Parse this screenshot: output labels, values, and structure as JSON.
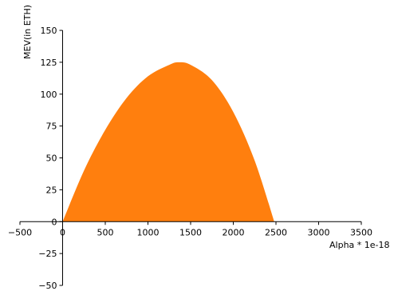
{
  "chart_data": {
    "type": "area",
    "title": "",
    "xlabel": "Alpha * 1e-18",
    "ylabel": "MEV(in ETH)",
    "xlim": [
      -500,
      3500
    ],
    "ylim": [
      -50,
      150
    ],
    "xticks": [
      -500,
      0,
      500,
      1000,
      1500,
      2000,
      2500,
      3000,
      3500
    ],
    "xtick_labels": [
      "−500",
      "0",
      "500",
      "1000",
      "1500",
      "2000",
      "2500",
      "3000",
      "3500"
    ],
    "yticks": [
      -50,
      -25,
      0,
      25,
      50,
      75,
      100,
      125,
      150
    ],
    "ytick_labels": [
      "−50",
      "−25",
      "0",
      "25",
      "50",
      "75",
      "100",
      "125",
      "150"
    ],
    "grid": false,
    "series": [
      {
        "color": "#ff7f0e",
        "x": [
          0,
          250,
          500,
          750,
          1000,
          1250,
          1360,
          1500,
          1750,
          2000,
          2250,
          2480
        ],
        "y": [
          0,
          40,
          72,
          97,
          114,
          123,
          125,
          123,
          111,
          86,
          48,
          0
        ]
      }
    ]
  }
}
